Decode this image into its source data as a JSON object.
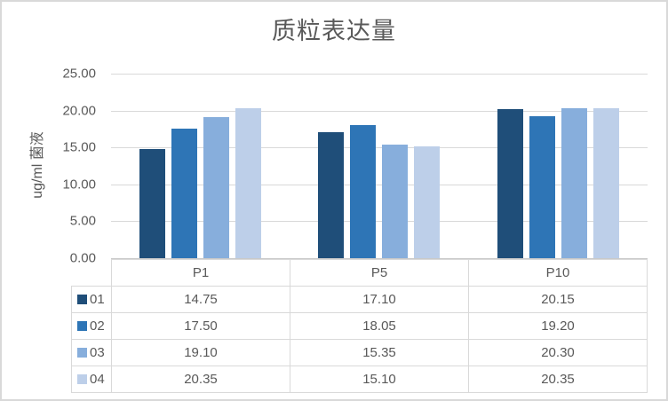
{
  "chart_data": {
    "type": "bar",
    "title": "质粒表达量",
    "ylabel": "ug/ml 菌液",
    "xlabel": "",
    "categories": [
      "P1",
      "P5",
      "P10"
    ],
    "series": [
      {
        "name": "01",
        "color": "#1F4E79",
        "values": [
          14.75,
          17.1,
          20.15
        ]
      },
      {
        "name": "02",
        "color": "#2E75B6",
        "values": [
          17.5,
          18.05,
          19.2
        ]
      },
      {
        "name": "03",
        "color": "#87AEDC",
        "values": [
          19.1,
          15.35,
          20.3
        ]
      },
      {
        "name": "04",
        "color": "#BDCFE9",
        "values": [
          20.35,
          15.1,
          20.35
        ]
      }
    ],
    "ylim": [
      0,
      25
    ],
    "ytick_labels": [
      "25.00",
      "20.00",
      "15.00",
      "10.00",
      "5.00",
      "0.00"
    ],
    "grid": true,
    "gridline_color": "#D9D9D9",
    "legend_position": "data-table-left",
    "value_format_decimals": 2
  }
}
